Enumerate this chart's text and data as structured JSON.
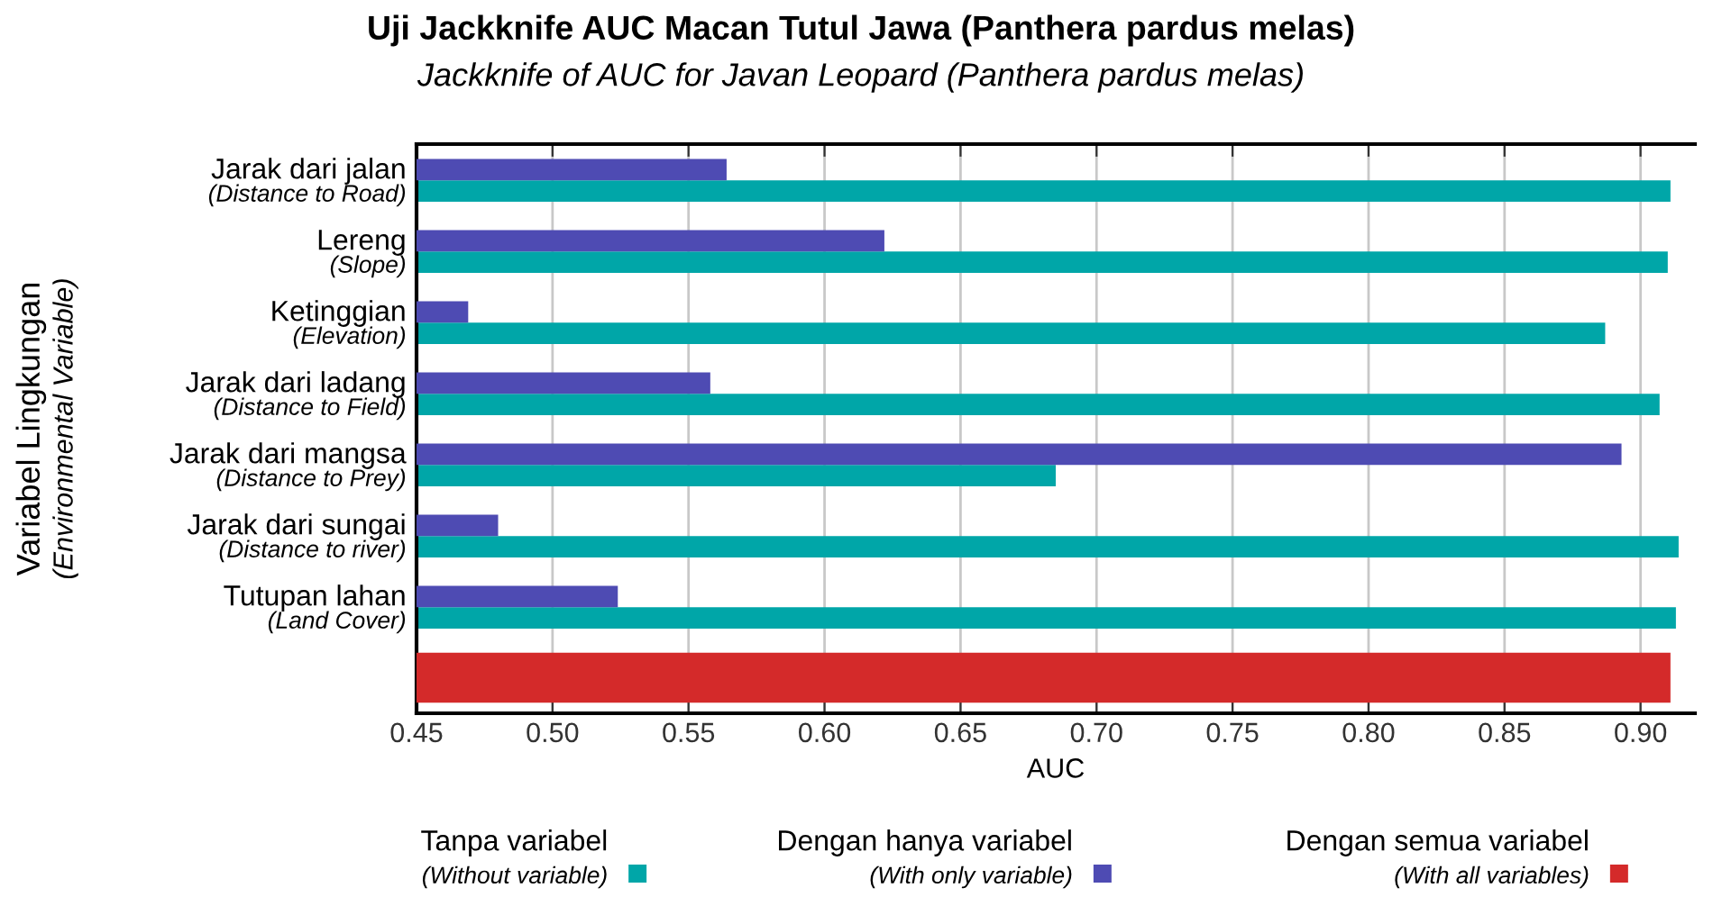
{
  "chart_data": {
    "type": "bar",
    "orientation": "horizontal",
    "title": "Uji Jackknife AUC Macan Tutul Jawa (Panthera pardus melas)",
    "subtitle": "Jackknife of AUC for Javan Leopard (Panthera pardus melas)",
    "xlabel": "AUC",
    "ylabel": "Variabel Lingkungan\n(Environmental Variable)",
    "categories": [
      "Jarak dari jalan\n(Distance to Road)",
      "Lereng\n(Slope)",
      "Ketinggian\n(Elevation)",
      "Jarak dari ladang\n(Distance to Field)",
      "Jarak dari mangsa\n(Distance to Prey)",
      "Jarak dari sungai\n(Distance to river)",
      "Tutupan lahan\n(Land Cover)",
      null
    ],
    "series": [
      {
        "name": "Tanpa variabel\n(Without variable)",
        "color": "#00a6a8",
        "values": [
          0.911,
          0.91,
          0.887,
          0.907,
          0.685,
          0.914,
          0.913,
          null
        ]
      },
      {
        "name": "Dengan hanya variabel\n(With only variable)",
        "color": "#4e4bb3",
        "values": [
          0.564,
          0.622,
          0.469,
          0.558,
          0.893,
          0.48,
          0.524,
          null
        ]
      },
      {
        "name": "Dengan semua variabel\n(With all variables)",
        "color": "#d42a2a",
        "values": [
          null,
          null,
          null,
          null,
          null,
          null,
          null,
          0.911
        ]
      }
    ],
    "xlim": [
      0.45,
      0.92
    ],
    "xticks": [
      {
        "value": 0.45,
        "label": "0.45"
      },
      {
        "value": 0.5,
        "label": "0.50"
      },
      {
        "value": 0.55,
        "label": "0.55"
      },
      {
        "value": 0.6,
        "label": "0.60"
      },
      {
        "value": 0.65,
        "label": "0.65"
      },
      {
        "value": 0.7,
        "label": "0.70"
      },
      {
        "value": 0.75,
        "label": "0.75"
      },
      {
        "value": 0.8,
        "label": "0.80"
      },
      {
        "value": 0.85,
        "label": "0.85"
      },
      {
        "value": 0.9,
        "label": "0.90"
      }
    ],
    "grid": "x",
    "legend": "bottom"
  }
}
